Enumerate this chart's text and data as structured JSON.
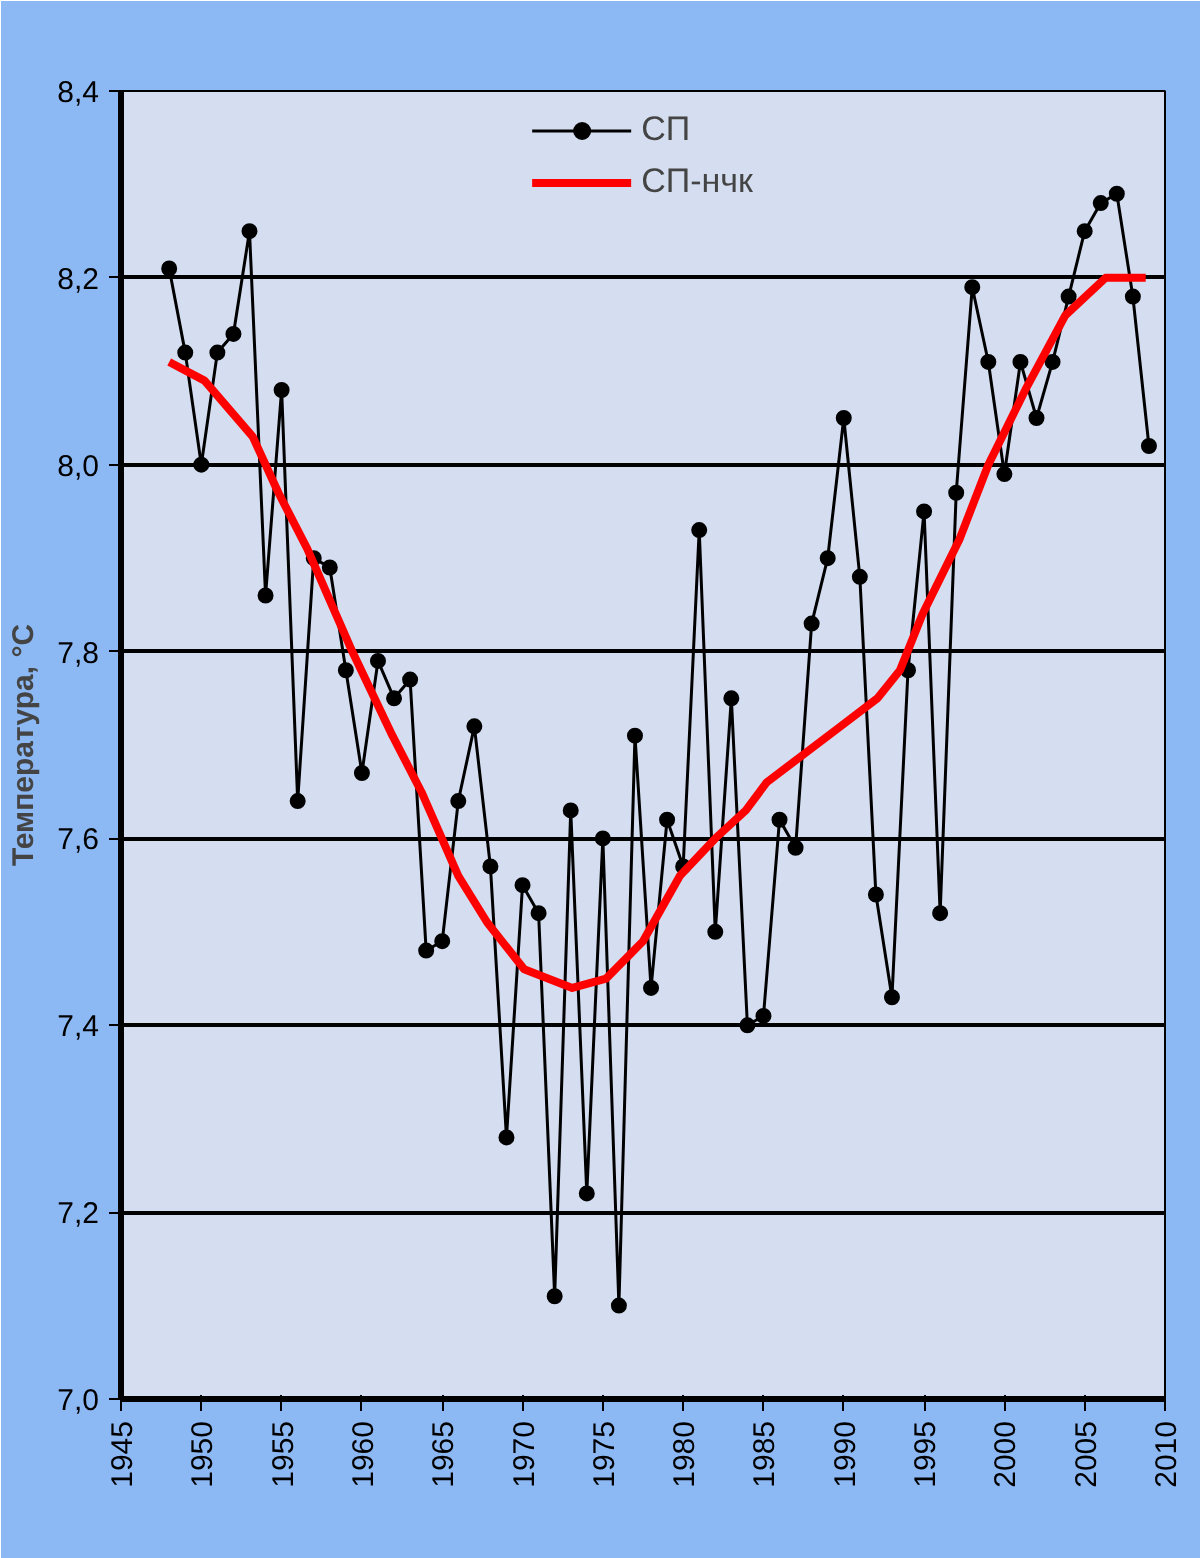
{
  "chart_data": {
    "type": "line",
    "ylabel": "Температура, °C",
    "xlim": [
      1945,
      2010
    ],
    "xticks": [
      1945,
      1950,
      1955,
      1960,
      1965,
      1970,
      1975,
      1980,
      1985,
      1990,
      1995,
      2000,
      2005,
      2010
    ],
    "ylim": [
      7.0,
      8.4
    ],
    "yticks": [
      {
        "value": 7.0,
        "label": "7,0"
      },
      {
        "value": 7.2,
        "label": "7,2"
      },
      {
        "value": 7.4,
        "label": "7,4"
      },
      {
        "value": 7.6,
        "label": "7,6"
      },
      {
        "value": 7.8,
        "label": "7,8"
      },
      {
        "value": 8.0,
        "label": "8,0"
      },
      {
        "value": 8.2,
        "label": "8,2"
      },
      {
        "value": 8.4,
        "label": "8,4"
      }
    ],
    "grid": "y",
    "legend": "top",
    "line_style": "solid",
    "series": [
      {
        "name": "СП",
        "color": "#000000",
        "marker": "circle",
        "x": [
          1948,
          1949,
          1950,
          1951,
          1952,
          1953,
          1954,
          1955,
          1956,
          1957,
          1958,
          1959,
          1960,
          1961,
          1962,
          1963,
          1964,
          1965,
          1966,
          1967,
          1968,
          1969,
          1970,
          1971,
          1972,
          1973,
          1974,
          1975,
          1976,
          1977,
          1978,
          1979,
          1980,
          1981,
          1982,
          1983,
          1984,
          1985,
          1986,
          1987,
          1988,
          1989,
          1990,
          1991,
          1992,
          1993,
          1994,
          1995,
          1996,
          1997,
          1998,
          1999,
          2000,
          2001,
          2002,
          2003,
          2004,
          2005,
          2006,
          2007,
          2008,
          2009
        ],
        "values": [
          8.21,
          8.12,
          8.0,
          8.12,
          8.14,
          8.25,
          7.86,
          8.08,
          7.64,
          7.9,
          7.89,
          7.78,
          7.67,
          7.79,
          7.75,
          7.77,
          7.48,
          7.49,
          7.64,
          7.72,
          7.57,
          7.28,
          7.55,
          7.52,
          7.11,
          7.63,
          7.22,
          7.6,
          7.1,
          7.71,
          7.44,
          7.62,
          7.57,
          7.93,
          7.5,
          7.75,
          7.4,
          7.41,
          7.62,
          7.59,
          7.83,
          7.9,
          8.05,
          7.88,
          7.54,
          7.43,
          7.78,
          7.95,
          7.52,
          7.97,
          8.19,
          8.11,
          7.99,
          8.11,
          8.05,
          8.11,
          8.18,
          8.25,
          8.28,
          8.29,
          8.18,
          8.02
        ]
      },
      {
        "name": "СП-нчк",
        "color": "#ff0000",
        "marker": "none",
        "x": [
          1948,
          1950.2,
          1953.2,
          1954.8,
          1956.6,
          1959.4,
          1961.9,
          1963.7,
          1966,
          1967.8,
          1970.1,
          1973.1,
          1975.2,
          1977.5,
          1979.8,
          1982,
          1983.9,
          1985.2,
          1987.5,
          1989.8,
          1992.1,
          1993.5,
          1994.9,
          1997.2,
          1999,
          2001.3,
          2003.8,
          2006.3,
          2008.8
        ],
        "values": [
          8.11,
          8.09,
          8.03,
          7.97,
          7.91,
          7.8,
          7.71,
          7.65,
          7.56,
          7.51,
          7.46,
          7.44,
          7.45,
          7.49,
          7.56,
          7.6,
          7.63,
          7.66,
          7.69,
          7.72,
          7.75,
          7.78,
          7.84,
          7.92,
          8.0,
          8.08,
          8.16,
          8.2,
          8.2
        ]
      }
    ]
  }
}
